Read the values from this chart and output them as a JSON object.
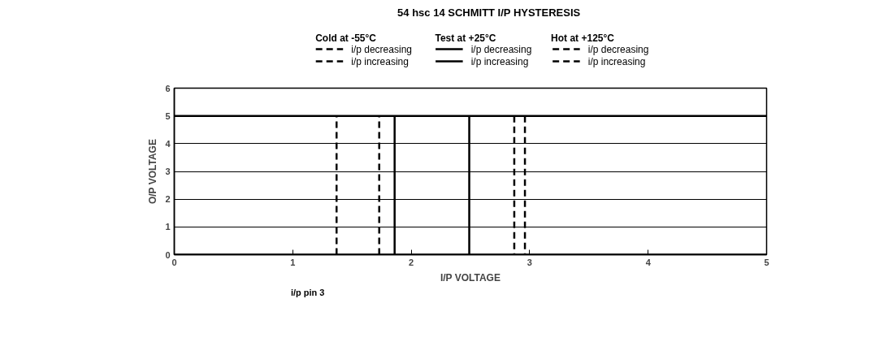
{
  "chart_data": {
    "type": "line",
    "title": "54 hsc 14 SCHMITT I/P HYSTERESIS",
    "xlabel": "I/P VOLTAGE",
    "ylabel": "O/P VOLTAGE",
    "annotations": [
      "Cold at -55°C",
      "Test at +25°C",
      "Hot at +125°C",
      "i/p pin 3"
    ],
    "xlim": [
      0,
      5
    ],
    "ylim": [
      0,
      6
    ],
    "xticks": [
      0,
      1,
      2,
      3,
      4,
      5
    ],
    "yticks": [
      0,
      1,
      2,
      3,
      4,
      5,
      6
    ],
    "grid": "y",
    "legend": "top",
    "series": [
      {
        "name": "i/p decreasing",
        "color": "#000000",
        "line_style": "dashed",
        "x": [
          2.96,
          2.96
        ],
        "values": [
          5,
          0
        ]
      },
      {
        "name": "i/p increasing",
        "color": "#000000",
        "line_style": "dashed",
        "x": [
          1.37,
          1.37
        ],
        "values": [
          0,
          5
        ]
      },
      {
        "name": "i/p decreasing",
        "color": "#000000",
        "line_style": "solid",
        "x": [
          2.49,
          2.49
        ],
        "values": [
          5,
          0
        ]
      },
      {
        "name": "i/p increasing",
        "color": "#000000",
        "line_style": "solid",
        "x": [
          1.86,
          1.86
        ],
        "values": [
          0,
          5
        ]
      },
      {
        "name": "i/p decreasing",
        "color": "#000000",
        "line_style": "dashed",
        "x": [
          2.87,
          2.87
        ],
        "values": [
          5,
          0
        ]
      },
      {
        "name": "i/p increasing",
        "color": "#000000",
        "line_style": "dashed",
        "x": [
          1.73,
          1.73
        ],
        "values": [
          0,
          5
        ]
      }
    ],
    "ref_lines": [
      {
        "axis": "y",
        "value": 5,
        "color": "#000000",
        "line_style": "solid"
      },
      {
        "axis": "y",
        "value": 0,
        "color": "#000000",
        "line_style": "solid"
      }
    ]
  }
}
